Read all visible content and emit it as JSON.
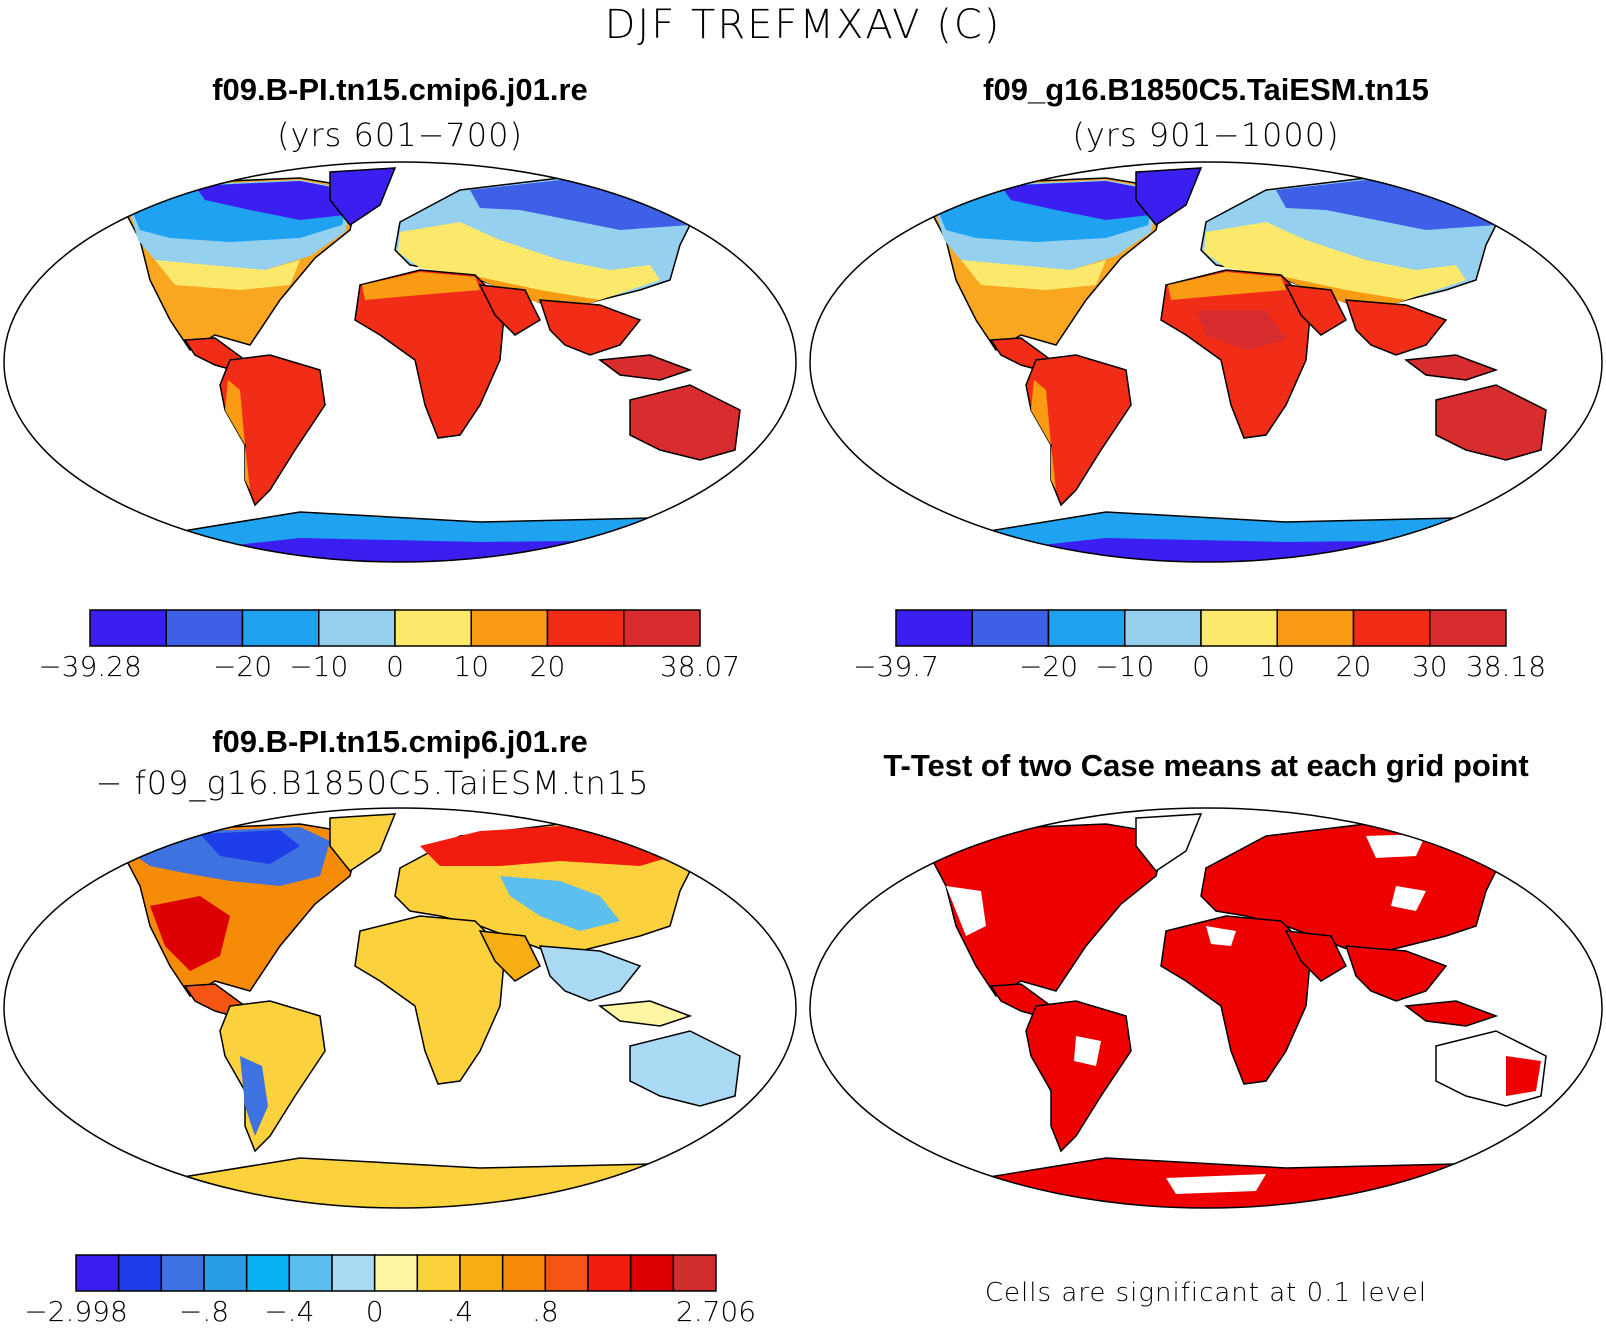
{
  "main_title": "DJF TREFMXAV (C)",
  "colors": {
    "abs_scale": [
      "#3b1ef0",
      "#3d60e6",
      "#1fa2f0",
      "#95d0ee",
      "#fce96b",
      "#f99c14",
      "#f22d17",
      "#d72d2f"
    ],
    "diff_scale": [
      "#3b1ef0",
      "#1d3de9",
      "#3d72e0",
      "#279de8",
      "#09b1f2",
      "#5cbfee",
      "#aad9f3",
      "#fdf5a1",
      "#fbd13e",
      "#f7ae14",
      "#f68b08",
      "#f55514",
      "#f21c0e",
      "#dd0000",
      "#d02d2d"
    ],
    "significant": "#ee0000",
    "outline": "#000000"
  },
  "panels": [
    {
      "title": "f09.B-PI.tn15.cmip6.j01.re",
      "subtitle": "(yrs 601−700)",
      "colorbar_labels": [
        "−39.28",
        "−20",
        "−10",
        "0",
        "10",
        "20",
        "38.07"
      ],
      "colorbar_label_index": [
        0,
        2,
        3,
        4,
        5,
        6,
        8
      ]
    },
    {
      "title": "f09_g16.B1850C5.TaiESM.tn15",
      "subtitle": "(yrs 901−1000)",
      "colorbar_labels": [
        "−39.7",
        "−20",
        "−10",
        "0",
        "10",
        "20",
        "30",
        "38.18"
      ],
      "colorbar_label_index": [
        0,
        2,
        3,
        4,
        5,
        6,
        7,
        8
      ]
    },
    {
      "title": "f09.B-PI.tn15.cmip6.j01.re",
      "subtitle": "− f09_g16.B1850C5.TaiESM.tn15",
      "colorbar_labels": [
        "−2.998",
        "−.8",
        "−.4",
        "0",
        ".4",
        ".8",
        "2.706"
      ],
      "colorbar_label_index": [
        0,
        3,
        5,
        7,
        9,
        11,
        15
      ]
    },
    {
      "title": "T-Test of two Case means at each grid point",
      "note": "Cells are significant at 0.1 level"
    }
  ]
}
